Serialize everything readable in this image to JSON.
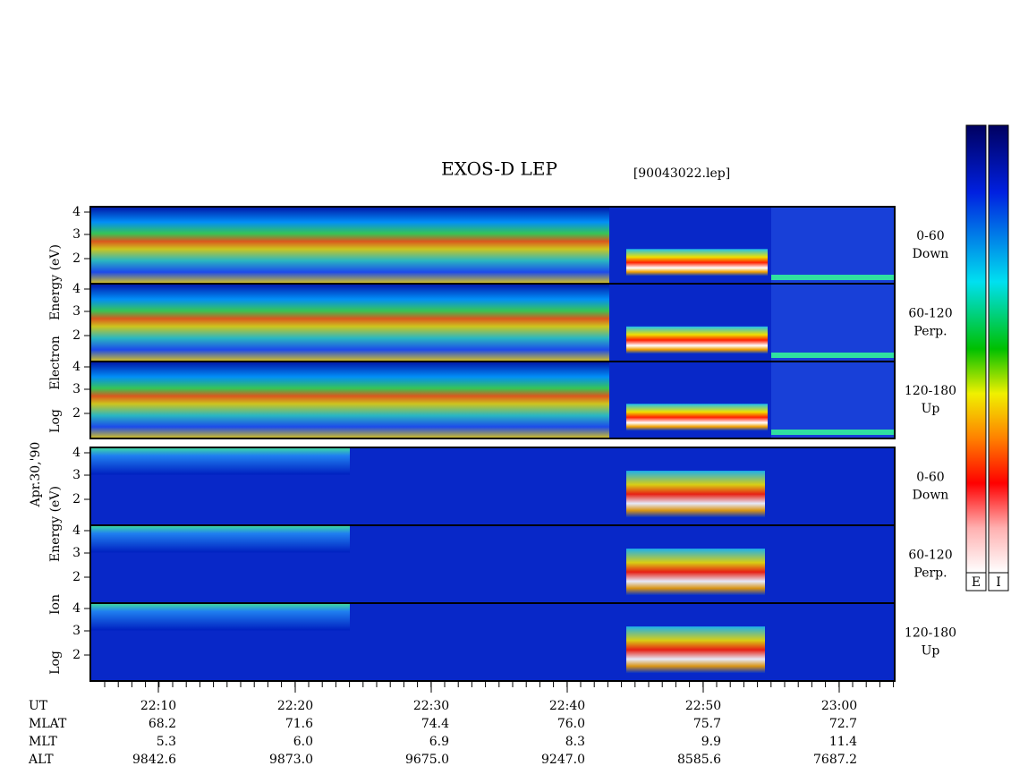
{
  "title": "EXOS-D LEP",
  "file": "[90043022.lep]",
  "date": "Apr.30,'90",
  "electron": {
    "axis_label": [
      "Log",
      "Electron",
      "Energy (eV)"
    ],
    "yticks": [
      "4",
      "3",
      "2"
    ],
    "panels": [
      [
        "0-60",
        "Down"
      ],
      [
        "60-120",
        "Perp."
      ],
      [
        "120-180",
        "Up"
      ]
    ]
  },
  "ion": {
    "axis_label": [
      "Log",
      "Ion",
      "Energy (eV)"
    ],
    "yticks": [
      "4",
      "3",
      "2"
    ],
    "panels": [
      [
        "0-60",
        "Down"
      ],
      [
        "60-120",
        "Perp."
      ],
      [
        "120-180",
        "Up"
      ]
    ]
  },
  "rows": [
    {
      "name": "UT",
      "values": [
        "22:10",
        "22:20",
        "22:30",
        "22:40",
        "22:50",
        "23:00"
      ]
    },
    {
      "name": "MLAT",
      "values": [
        "68.2",
        "71.6",
        "74.4",
        "76.0",
        "75.7",
        "72.7"
      ]
    },
    {
      "name": "MLT",
      "values": [
        "5.3",
        "6.0",
        "6.9",
        "8.3",
        "9.9",
        "11.4"
      ]
    },
    {
      "name": "ALT",
      "values": [
        "9842.6",
        "9873.0",
        "9675.0",
        "9247.0",
        "8585.6",
        "7687.2"
      ]
    }
  ],
  "colorbars": [
    "E",
    "I"
  ]
}
